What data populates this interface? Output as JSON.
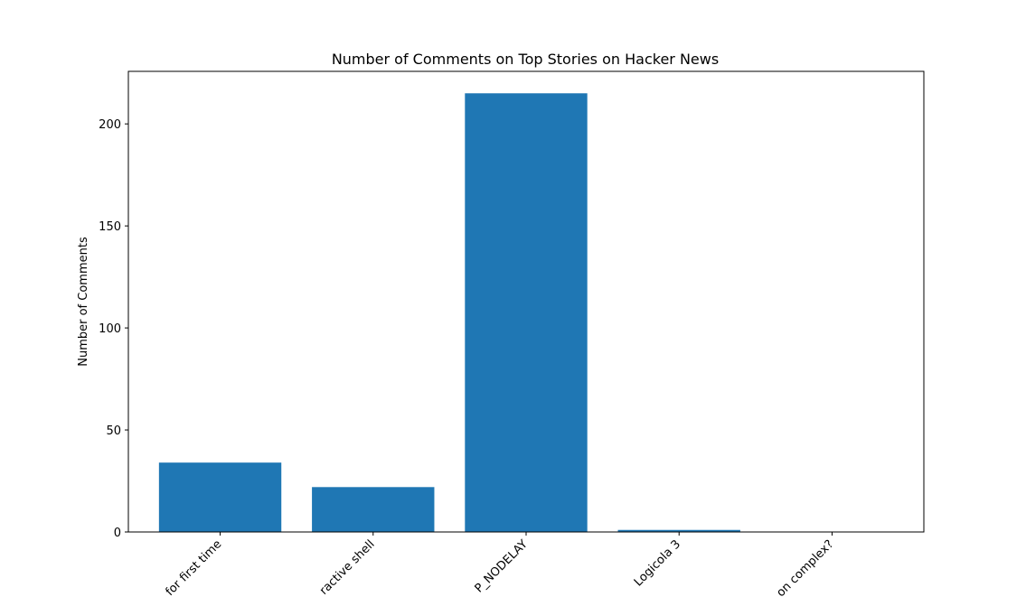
{
  "chart_data": {
    "type": "bar",
    "title": "Number of Comments on Top Stories on Hacker News",
    "xlabel": "",
    "ylabel": "Number of Comments",
    "categories": [
      "for first time",
      "ractive shell",
      "P_NODELAY",
      "Logicola 3",
      "on complex?"
    ],
    "values": [
      34,
      22,
      215,
      1,
      0
    ],
    "ylim": [
      0,
      225.75
    ],
    "yticks": [
      0,
      50,
      100,
      150,
      200
    ],
    "bar_color": "#1f77b4",
    "grid": false,
    "legend": "none"
  }
}
